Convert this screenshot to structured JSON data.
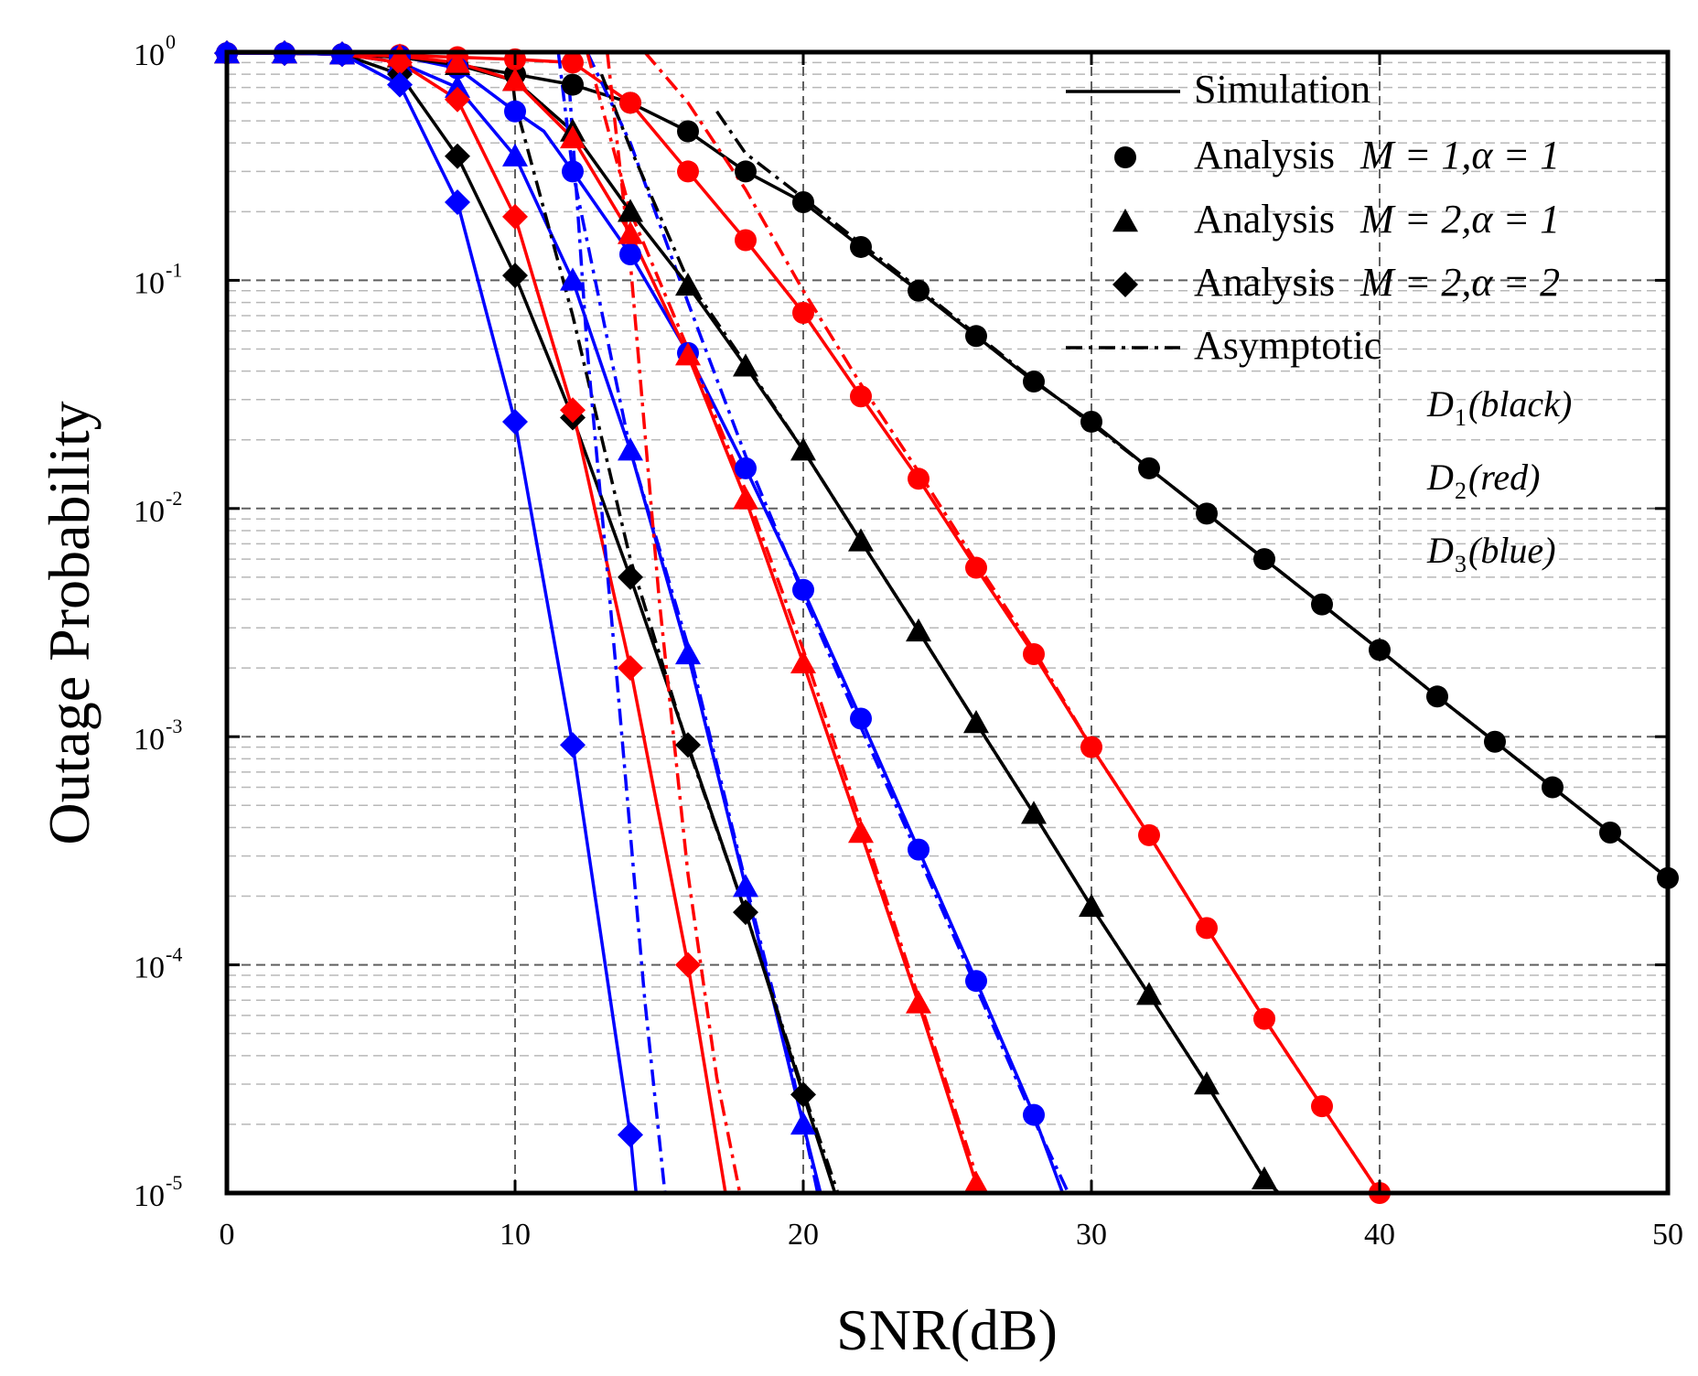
{
  "chart_data": {
    "type": "line",
    "title": "",
    "xlabel": "SNR(dB)",
    "ylabel": "Outage Probability",
    "xlim": [
      0,
      50
    ],
    "ylim": [
      1e-05,
      1
    ],
    "yscale": "log",
    "grid": true,
    "x_ticks": [
      0,
      10,
      20,
      30,
      40,
      50
    ],
    "x_tick_labels": [
      "0",
      "10",
      "20",
      "30",
      "40",
      "50"
    ],
    "y_ticks": [
      {
        "value": 1,
        "base": "10",
        "exp": "0"
      },
      {
        "value": 0.1,
        "base": "10",
        "exp": "-1"
      },
      {
        "value": 0.01,
        "base": "10",
        "exp": "-2"
      },
      {
        "value": 0.001,
        "base": "10",
        "exp": "-3"
      },
      {
        "value": 0.0001,
        "base": "10",
        "exp": "-4"
      },
      {
        "value": 1e-05,
        "base": "10",
        "exp": "-5"
      }
    ],
    "colors": {
      "D1": "#000000",
      "D2": "#ff0000",
      "D3": "#0000ff"
    },
    "legend": {
      "position": "top-right",
      "entries": [
        {
          "style": "solid",
          "label": "Simulation",
          "math": ""
        },
        {
          "style": "circle",
          "label": "Analysis",
          "math": "M = 1,α = 1"
        },
        {
          "style": "triangle",
          "label": "Analysis",
          "math": "M = 2,α = 1"
        },
        {
          "style": "diamond",
          "label": "Analysis",
          "math": "M = 2,α = 2"
        },
        {
          "style": "dashdot",
          "label": "Asymptotic",
          "math": ""
        }
      ]
    },
    "annotations": [
      {
        "sym": "D",
        "sub": "1",
        "label": "(black)"
      },
      {
        "sym": "D",
        "sub": "2",
        "label": "(red)"
      },
      {
        "sym": "D",
        "sub": "3",
        "label": "(blue)"
      }
    ],
    "series": [
      {
        "name": "D1 M=1 α=1 simulation",
        "user": "D1",
        "color": "#000000",
        "kind": "simulation",
        "marker": "circle",
        "x": [
          0,
          2,
          4,
          6,
          8,
          10,
          12,
          14,
          16,
          18,
          20,
          22,
          24,
          26,
          28,
          30,
          32,
          34,
          36,
          38,
          40,
          42,
          44,
          46,
          48,
          50
        ],
        "y": [
          0.99,
          0.99,
          0.98,
          0.95,
          0.88,
          0.8,
          0.72,
          0.6,
          0.45,
          0.3,
          0.22,
          0.14,
          0.09,
          0.057,
          0.036,
          0.024,
          0.015,
          0.0095,
          0.006,
          0.0038,
          0.0024,
          0.0015,
          0.00095,
          0.0006,
          0.00038,
          0.00024
        ]
      },
      {
        "name": "D1 M=1 α=1 asymptotic",
        "user": "D1",
        "color": "#000000",
        "kind": "asymptotic",
        "x": [
          17,
          18,
          20,
          22,
          24,
          26,
          28,
          30,
          32,
          34,
          36,
          38,
          40,
          42,
          44,
          46,
          48,
          50
        ],
        "y": [
          0.55,
          0.36,
          0.23,
          0.145,
          0.092,
          0.058,
          0.0365,
          0.0235,
          0.015,
          0.0095,
          0.006,
          0.0038,
          0.0024,
          0.0015,
          0.00095,
          0.0006,
          0.00038,
          0.00024
        ]
      },
      {
        "name": "D2 M=1 α=1 simulation",
        "user": "D2",
        "color": "#ff0000",
        "kind": "simulation",
        "marker": "circle",
        "x": [
          0,
          2,
          4,
          6,
          8,
          10,
          12,
          14,
          16,
          18,
          20,
          22,
          24,
          26,
          28,
          30,
          32,
          34,
          36,
          38,
          40
        ],
        "y": [
          0.99,
          0.99,
          0.98,
          0.97,
          0.95,
          0.93,
          0.9,
          0.6,
          0.3,
          0.15,
          0.072,
          0.031,
          0.0135,
          0.0055,
          0.0023,
          0.0009,
          0.00037,
          0.000145,
          5.8e-05,
          2.4e-05,
          1e-05
        ]
      },
      {
        "name": "D2 M=1 α=1 asymptotic",
        "user": "D2",
        "color": "#ff0000",
        "kind": "asymptotic",
        "x": [
          14.5,
          16,
          18,
          20,
          22,
          24,
          26,
          28,
          30,
          32,
          34,
          36,
          38,
          40
        ],
        "y": [
          1,
          0.6,
          0.25,
          0.09,
          0.035,
          0.0145,
          0.0058,
          0.0024,
          0.0009,
          0.00037,
          0.000145,
          5.8e-05,
          2.4e-05,
          1e-05
        ]
      },
      {
        "name": "D3 M=1 α=1 simulation",
        "user": "D3",
        "color": "#0000ff",
        "kind": "simulation",
        "marker": "circle",
        "x": [
          0,
          2,
          4,
          6,
          8,
          10,
          11,
          12,
          14,
          16,
          18,
          20,
          22,
          24,
          26,
          28,
          29
        ],
        "y": [
          0.99,
          0.99,
          0.98,
          0.96,
          0.85,
          0.55,
          0.45,
          0.3,
          0.13,
          0.048,
          0.015,
          0.0044,
          0.0012,
          0.00032,
          8.5e-05,
          2.2e-05,
          1e-05
        ]
      },
      {
        "name": "D3 M=1 α=1 asymptotic",
        "user": "D3",
        "color": "#0000ff",
        "kind": "asymptotic",
        "x": [
          12.5,
          14,
          16,
          18,
          20,
          22,
          24,
          26,
          28,
          29.2
        ],
        "y": [
          1,
          0.4,
          0.08,
          0.017,
          0.0042,
          0.0011,
          0.0003,
          8e-05,
          2.1e-05,
          1e-05
        ]
      },
      {
        "name": "D1 M=2 α=1 simulation",
        "user": "D1",
        "color": "#000000",
        "kind": "simulation",
        "marker": "triangle",
        "x": [
          0,
          2,
          4,
          6,
          8,
          10,
          12,
          14,
          16,
          18,
          20,
          22,
          24,
          26,
          28,
          30,
          32,
          34,
          36,
          36.5
        ],
        "y": [
          0.99,
          0.99,
          0.98,
          0.95,
          0.88,
          0.75,
          0.45,
          0.2,
          0.095,
          0.042,
          0.018,
          0.0072,
          0.0029,
          0.00115,
          0.00046,
          0.00018,
          7.4e-05,
          3e-05,
          1.15e-05,
          1e-05
        ]
      },
      {
        "name": "D1 M=2 α=1 asymptotic",
        "user": "D1",
        "color": "#000000",
        "kind": "asymptotic",
        "x": [
          13,
          14,
          16,
          18,
          20,
          22,
          24,
          26,
          28,
          30,
          32,
          34,
          36,
          36.5
        ],
        "y": [
          0.8,
          0.38,
          0.1,
          0.043,
          0.018,
          0.0072,
          0.0029,
          0.00115,
          0.00046,
          0.00018,
          7.4e-05,
          3e-05,
          1.15e-05,
          1e-05
        ]
      },
      {
        "name": "D2 M=2 α=1 simulation",
        "user": "D2",
        "color": "#ff0000",
        "kind": "simulation",
        "marker": "triangle",
        "x": [
          0,
          2,
          4,
          6,
          8,
          10,
          12,
          14,
          16,
          18,
          20,
          22,
          24,
          26,
          26.3
        ],
        "y": [
          0.99,
          0.99,
          0.98,
          0.96,
          0.9,
          0.75,
          0.42,
          0.16,
          0.047,
          0.011,
          0.0021,
          0.00038,
          6.8e-05,
          1.1e-05,
          1e-05
        ]
      },
      {
        "name": "D2 M=2 α=1 asymptotic",
        "user": "D2",
        "color": "#ff0000",
        "kind": "asymptotic",
        "x": [
          12.5,
          14,
          16,
          18,
          20,
          22,
          24,
          26,
          26.3
        ],
        "y": [
          1,
          0.2,
          0.05,
          0.012,
          0.0024,
          0.00042,
          7.2e-05,
          1.2e-05,
          1e-05
        ]
      },
      {
        "name": "D3 M=2 α=1 simulation",
        "user": "D3",
        "color": "#0000ff",
        "kind": "simulation",
        "marker": "triangle",
        "x": [
          0,
          2,
          4,
          6,
          8,
          10,
          12,
          14,
          16,
          18,
          20,
          20.6
        ],
        "y": [
          0.99,
          0.99,
          0.98,
          0.9,
          0.7,
          0.35,
          0.1,
          0.018,
          0.0023,
          0.00022,
          2e-05,
          1e-05
        ]
      },
      {
        "name": "D3 M=2 α=1 asymptotic",
        "user": "D3",
        "color": "#0000ff",
        "kind": "asymptotic",
        "x": [
          11.5,
          12,
          14,
          16,
          18,
          19.5,
          20.5
        ],
        "y": [
          1,
          0.3,
          0.018,
          0.0025,
          0.00023,
          4e-05,
          1e-05
        ]
      },
      {
        "name": "D1 M=2 α=2 simulation",
        "user": "D1",
        "color": "#000000",
        "kind": "simulation",
        "marker": "diamond",
        "x": [
          0,
          2,
          4,
          6,
          8,
          10,
          12,
          14,
          16,
          18,
          20,
          21.1
        ],
        "y": [
          0.99,
          0.99,
          0.98,
          0.8,
          0.35,
          0.105,
          0.025,
          0.005,
          0.00092,
          0.00017,
          2.7e-05,
          1e-05
        ]
      },
      {
        "name": "D1 M=2 α=2 asymptotic",
        "user": "D1",
        "color": "#000000",
        "kind": "asymptotic",
        "x": [
          9.8,
          10,
          12,
          14,
          16,
          18,
          20,
          21.2
        ],
        "y": [
          1,
          0.6,
          0.07,
          0.006,
          0.0009,
          0.00017,
          2.8e-05,
          1e-05
        ]
      },
      {
        "name": "D2 M=2 α=2 simulation",
        "user": "D2",
        "color": "#ff0000",
        "kind": "simulation",
        "marker": "diamond",
        "x": [
          0,
          2,
          4,
          6,
          8,
          10,
          12,
          14,
          16,
          17.3
        ],
        "y": [
          0.99,
          0.99,
          0.98,
          0.9,
          0.62,
          0.19,
          0.027,
          0.002,
          0.0001,
          1e-05
        ]
      },
      {
        "name": "D2 M=2 α=2 asymptotic",
        "user": "D2",
        "color": "#ff0000",
        "kind": "asymptotic",
        "x": [
          13.2,
          14,
          15,
          16,
          17,
          17.8
        ],
        "y": [
          1,
          0.12,
          0.004,
          0.00025,
          3.2e-05,
          1e-05
        ]
      },
      {
        "name": "D3 M=2 α=2 simulation",
        "user": "D3",
        "color": "#0000ff",
        "kind": "simulation",
        "marker": "diamond",
        "x": [
          0,
          2,
          4,
          6,
          8,
          10,
          12,
          14,
          14.2
        ],
        "y": [
          0.99,
          0.99,
          0.98,
          0.72,
          0.22,
          0.024,
          0.00092,
          1.8e-05,
          1e-05
        ]
      },
      {
        "name": "D3 M=2 α=2 asymptotic",
        "user": "D3",
        "color": "#0000ff",
        "kind": "asymptotic",
        "x": [
          11.8,
          12.5,
          13.5,
          14.5,
          15.2
        ],
        "y": [
          1,
          0.05,
          0.002,
          7e-05,
          1e-05
        ]
      }
    ]
  }
}
